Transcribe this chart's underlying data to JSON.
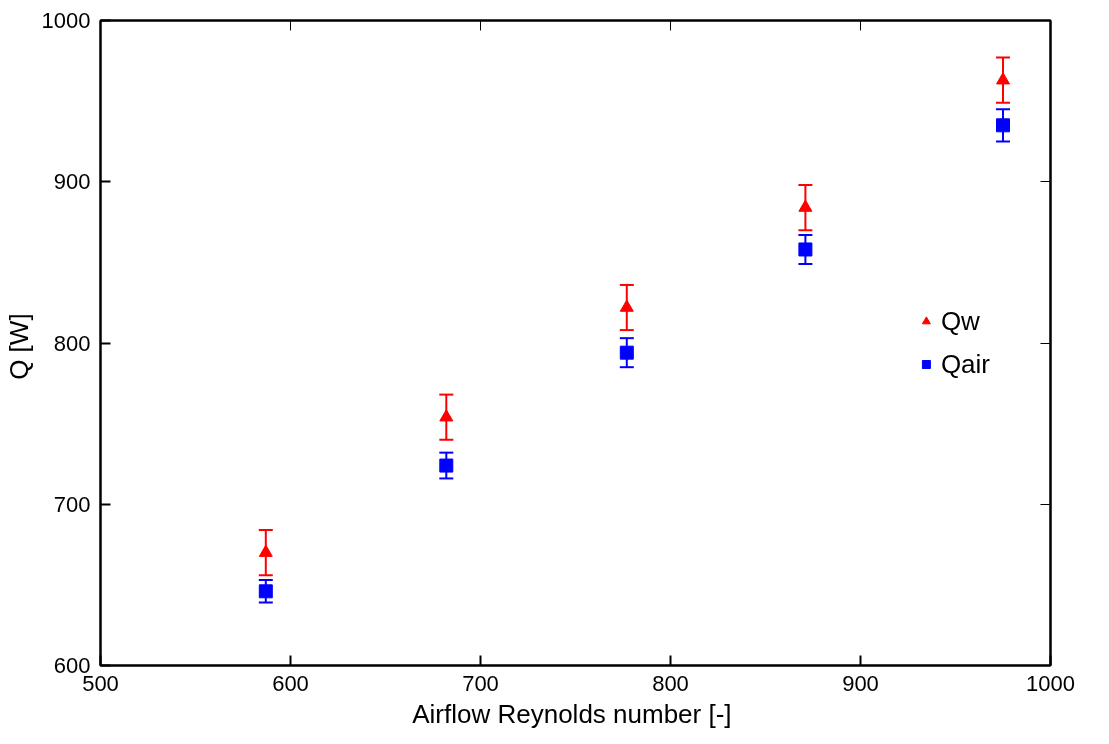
{
  "chart_data": {
    "type": "scatter",
    "xlabel": "Airflow Reynolds number  [-]",
    "ylabel": "Q  [W]",
    "x": [
      587,
      682,
      777,
      871,
      975
    ],
    "series": [
      {
        "name": "Qw",
        "color": "#ff0000",
        "marker": "triangle",
        "values": [
          670,
          754,
          822,
          884,
          963
        ],
        "errors": [
          14,
          14,
          14,
          14,
          14
        ]
      },
      {
        "name": "Qair",
        "color": "#0000ff",
        "marker": "square",
        "values": [
          646,
          724,
          794,
          858,
          935
        ],
        "errors": [
          7,
          8,
          9,
          9,
          10
        ]
      }
    ],
    "xlim": [
      500,
      1000
    ],
    "ylim": [
      600,
      1000
    ],
    "xticks": [
      500,
      600,
      700,
      800,
      900,
      1000
    ],
    "yticks": [
      600,
      700,
      800,
      900,
      1000
    ],
    "legend": "right"
  }
}
